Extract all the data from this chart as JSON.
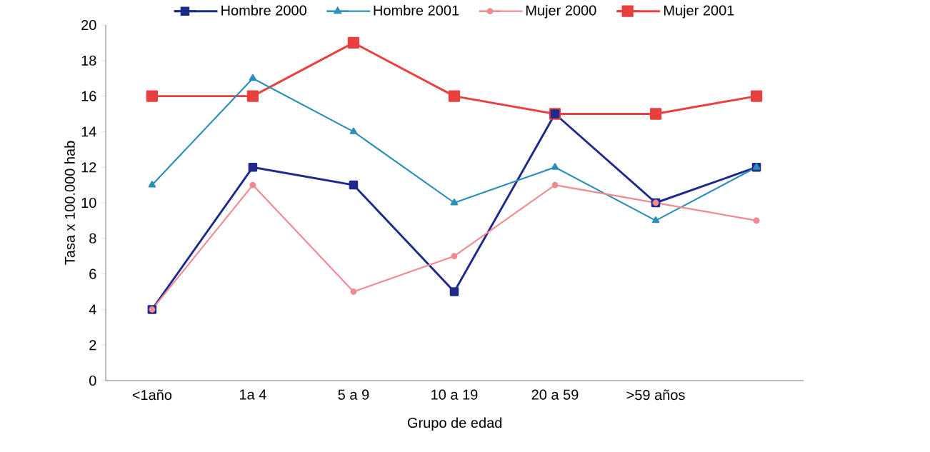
{
  "chart_data": {
    "type": "line",
    "xlabel": "Grupo de edad",
    "ylabel": "Tasa x 100.000 hab",
    "categories": [
      "<1año",
      "1a 4",
      "5 a 9",
      "10 a 19",
      "20 a 59",
      ">59 años",
      null
    ],
    "ylim": [
      0,
      20
    ],
    "yticks": [
      0,
      2,
      4,
      6,
      8,
      10,
      12,
      14,
      16,
      18,
      20
    ],
    "grid": false,
    "legend": "top",
    "line_style": "solid",
    "series": [
      {
        "name": "Hombre 2000",
        "color": "#1f2a8a",
        "marker": "square",
        "values": [
          4,
          12,
          11,
          5,
          15,
          10,
          12
        ]
      },
      {
        "name": "Hombre 2001",
        "color": "#2a8fb8",
        "marker": "triangle",
        "values": [
          11,
          17,
          14,
          10,
          12,
          9,
          12
        ]
      },
      {
        "name": "Mujer 2000",
        "color": "#f08a90",
        "marker": "circle",
        "values": [
          4,
          11,
          5,
          7,
          11,
          10,
          9
        ]
      },
      {
        "name": "Mujer 2001",
        "color": "#e8403f",
        "marker": "square",
        "values": [
          16,
          16,
          19,
          16,
          15,
          15,
          16
        ]
      }
    ]
  }
}
